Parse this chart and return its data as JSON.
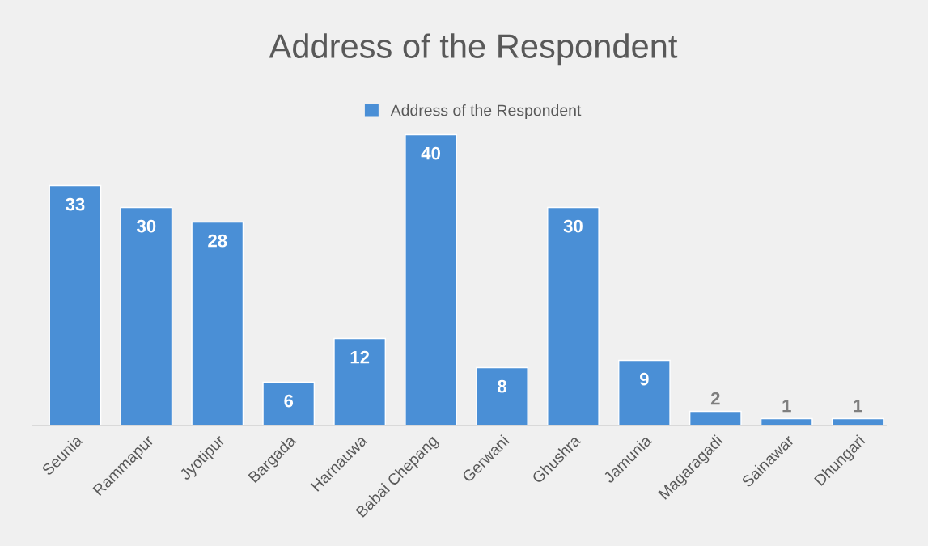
{
  "chart_data": {
    "type": "bar",
    "title": "Address of the Respondent",
    "categories": [
      "Seunia",
      "Rammapur",
      "Jyotipur",
      "Bargada",
      "Harnauwa",
      "Babai Chepang",
      "Gerwani",
      "Ghushra",
      "Jamunia",
      "Magaragadi",
      "Sainawar",
      "Dhungari"
    ],
    "series": [
      {
        "name": "Address of the Respondent",
        "color": "#4a8fd6",
        "values": [
          33,
          30,
          28,
          6,
          12,
          40,
          8,
          30,
          9,
          2,
          1,
          1
        ]
      }
    ],
    "data_labels": true,
    "legend": "top",
    "grid": false
  }
}
